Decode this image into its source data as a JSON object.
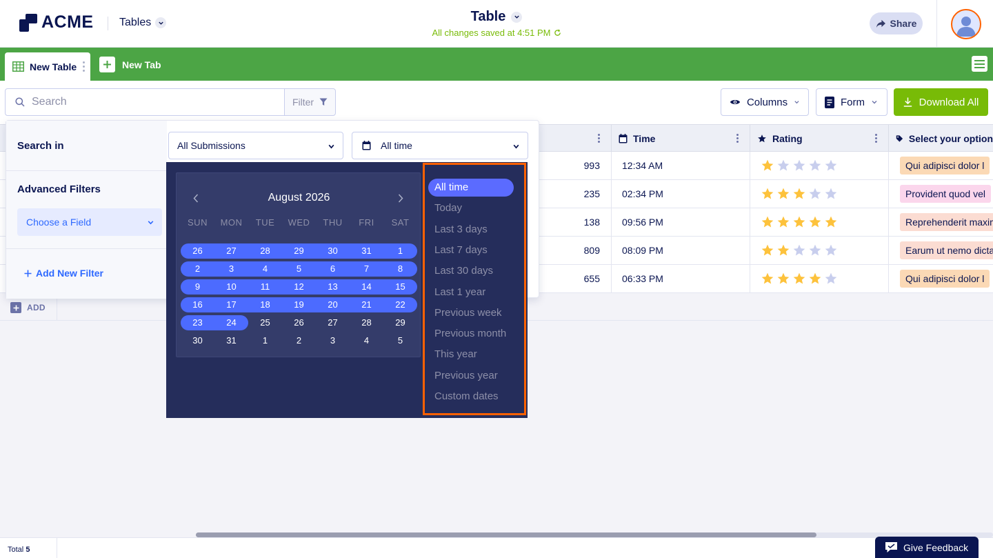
{
  "brand": {
    "name": "ACME"
  },
  "header": {
    "tables_menu": "Tables",
    "title": "Table",
    "save_status": "All changes saved at 4:51 PM",
    "share_label": "Share"
  },
  "tabs": {
    "active": "New Table",
    "new_tab": "New Tab"
  },
  "toolbar": {
    "search_placeholder": "Search",
    "filter_label": "Filter",
    "columns_label": "Columns",
    "form_label": "Form",
    "download_label": "Download All"
  },
  "table": {
    "columns": [
      {
        "label": "Time",
        "icon": "calendar-icon"
      },
      {
        "label": "Rating",
        "icon": "star-icon"
      },
      {
        "label": "Select your option",
        "icon": "tag-icon"
      }
    ],
    "rows": [
      {
        "num": "993",
        "time": "12:34 AM",
        "rating": 1,
        "option": "Qui adipisci dolor l",
        "option_color": "#fbd9b5"
      },
      {
        "num": "235",
        "time": "02:34 PM",
        "rating": 3,
        "option": "Provident quod vel",
        "option_color": "#fbd6ec"
      },
      {
        "num": "138",
        "time": "09:56 PM",
        "rating": 5,
        "option": "Reprehenderit maxim",
        "option_color": "#fbdcd2"
      },
      {
        "num": "809",
        "time": "08:09 PM",
        "rating": 2,
        "option": "Earum ut nemo dicta",
        "option_color": "#fbdcd2"
      },
      {
        "num": "655",
        "time": "06:33 PM",
        "rating": 4,
        "option": "Qui adipisci dolor l",
        "option_color": "#fbd9b5"
      }
    ],
    "add_label": "ADD"
  },
  "filter_panel": {
    "search_in_label": "Search in",
    "submissions_select": "All Submissions",
    "date_select": "All time",
    "advanced_label": "Advanced Filters",
    "choose_field": "Choose a Field",
    "add_filter": "Add New Filter"
  },
  "calendar": {
    "month_label": "August 2026",
    "weekdays": [
      "SUN",
      "MON",
      "TUE",
      "WED",
      "THU",
      "FRI",
      "SAT"
    ],
    "weeks": [
      [
        "26",
        "27",
        "28",
        "29",
        "30",
        "31",
        "1"
      ],
      [
        "2",
        "3",
        "4",
        "5",
        "6",
        "7",
        "8"
      ],
      [
        "9",
        "10",
        "11",
        "12",
        "13",
        "14",
        "15"
      ],
      [
        "16",
        "17",
        "18",
        "19",
        "20",
        "21",
        "22"
      ],
      [
        "23",
        "24",
        "25",
        "26",
        "27",
        "28",
        "29"
      ],
      [
        "30",
        "31",
        "1",
        "2",
        "3",
        "4",
        "5"
      ]
    ],
    "highlight_end": {
      "week": 4,
      "day": 1
    }
  },
  "date_presets": {
    "active": "All time",
    "items": [
      "All time",
      "Today",
      "Last 3 days",
      "Last 7 days",
      "Last 30 days",
      "Last 1 year",
      "Previous week",
      "Previous month",
      "This year",
      "Previous year",
      "Custom dates"
    ]
  },
  "footer": {
    "total_label": "Total",
    "total_count": "5",
    "feedback_label": "Give Feedback"
  },
  "colors": {
    "tabbar": "#4ca545",
    "download": "#78bb07",
    "accent": "#2e69ff",
    "range": "#4c6bff",
    "highlight_border": "#ff6100",
    "star_on": "#fdc23c",
    "star_off": "#c8ceed"
  }
}
